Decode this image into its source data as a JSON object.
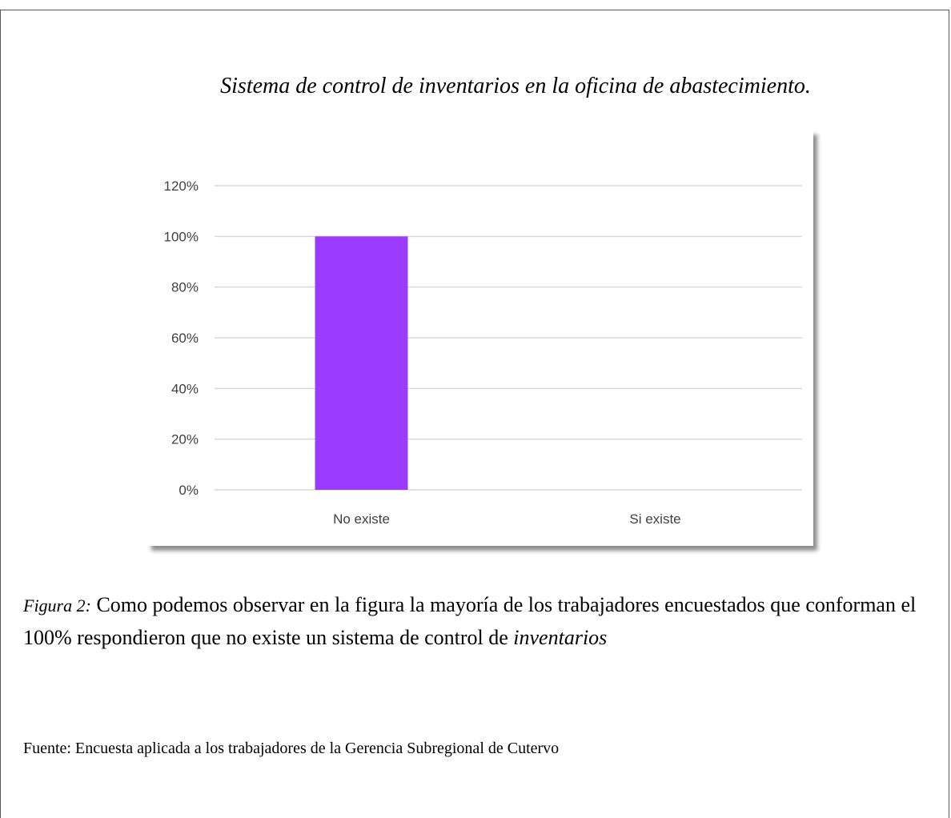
{
  "figure": {
    "title": "Sistema de control de inventarios en la oficina de abastecimiento.",
    "caption_lead": "Figura 2:",
    "caption_text": " Como podemos observar en la figura la mayoría de los trabajadores encuestados que conforman el 100% respondieron que no existe un sistema de control de ",
    "caption_tail": "inventarios",
    "source": "Fuente: Encuesta aplicada a los trabajadores de la Gerencia Subregional de Cutervo"
  },
  "colors": {
    "bar": "#9B3BFF",
    "grid": "#d9d9d9",
    "axis_text": "#404040"
  },
  "chart_data": {
    "type": "bar",
    "title": "",
    "xlabel": "",
    "ylabel": "",
    "categories": [
      "No  existe",
      "Si existe"
    ],
    "values": [
      1.0,
      0
    ],
    "ylim": [
      0,
      1.2
    ],
    "yticks": [
      0,
      0.2,
      0.4,
      0.6,
      0.8,
      1.0,
      1.2
    ],
    "ytick_labels": [
      "0%",
      "20%",
      "40%",
      "60%",
      "80%",
      "100%",
      "120%"
    ],
    "grid": true,
    "legend": "none"
  }
}
